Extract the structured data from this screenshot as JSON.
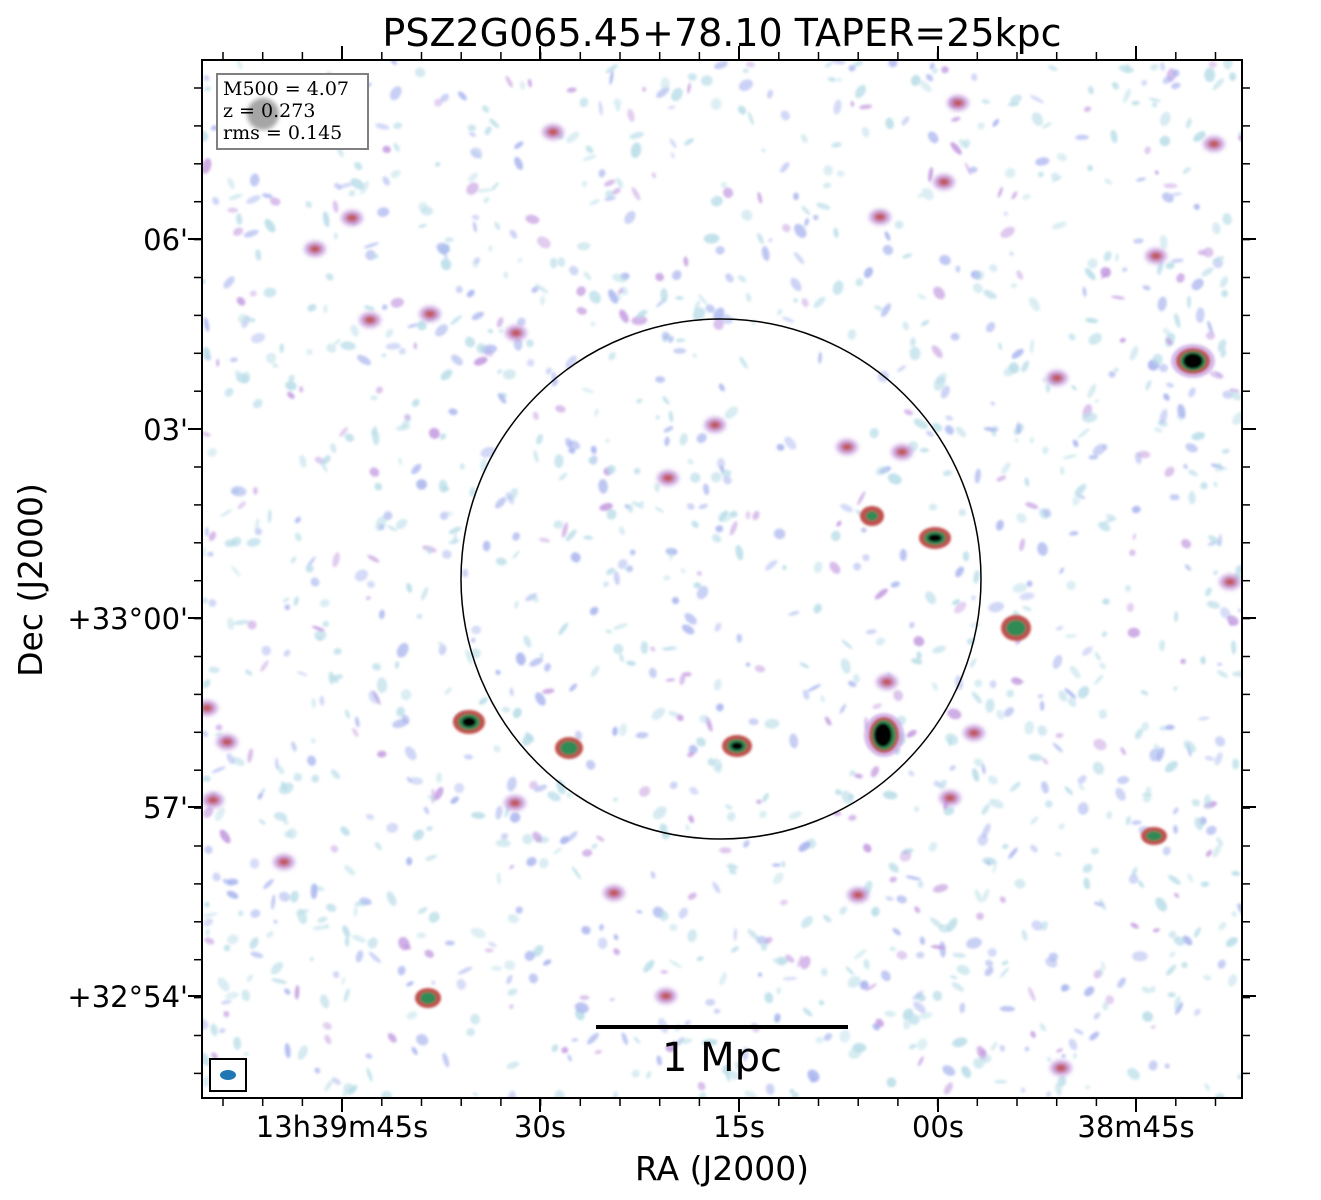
{
  "title": "PSZ2G065.45+78.10 TAPER=25kpc",
  "axes": {
    "xlabel": "RA (J2000)",
    "ylabel": "Dec (J2000)",
    "x_ticks": [
      "13h39m45s",
      "30s",
      "15s",
      "00s",
      "38m45s"
    ],
    "y_ticks": [
      "06'",
      "03'",
      "+33°00'",
      "57'",
      "+32°54'"
    ]
  },
  "info_box": {
    "line1": "M500 = 4.07",
    "line2": "z = 0.273",
    "line3": "rms = 0.145"
  },
  "scalebar": {
    "label": "1 Mpc"
  },
  "colors": {
    "noise_light": "#b9dde8",
    "noise_blue": "#a8b4ee",
    "noise_purple": "#c49be0",
    "source_red": "#c0504d",
    "source_green": "#2e8b57",
    "source_core": "#000000",
    "beam": "#1f77b4"
  }
}
